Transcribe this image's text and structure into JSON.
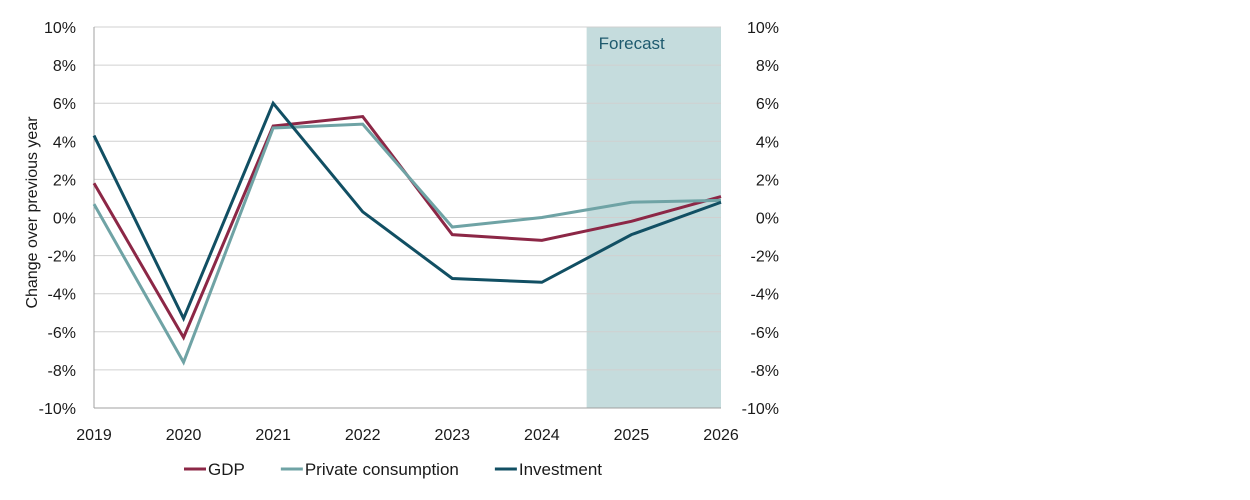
{
  "chart_data": {
    "type": "line",
    "title": "",
    "xlabel": "",
    "ylabel": "Change over previous year",
    "x": [
      "2019",
      "2020",
      "2021",
      "2022",
      "2023",
      "2024",
      "2025",
      "2026"
    ],
    "ylim": [
      -10,
      10
    ],
    "y_ticks": [
      "10%",
      "8%",
      "6%",
      "4%",
      "2%",
      "0%",
      "-2%",
      "-4%",
      "-6%",
      "-8%",
      "-10%"
    ],
    "y_tick_values": [
      10,
      8,
      6,
      4,
      2,
      0,
      -2,
      -4,
      -6,
      -8,
      -10
    ],
    "y_right_ticks": [
      "10%",
      "8%",
      "6%",
      "4%",
      "2%",
      "0%",
      "-2%",
      "-4%",
      "-6%",
      "-8%",
      "-10%"
    ],
    "grid": true,
    "legend_position": "bottom",
    "forecast": {
      "label": "Forecast",
      "from": 5.5,
      "to": 7,
      "color": "#c5dcdd",
      "label_color": "#1e5a6e"
    },
    "series": [
      {
        "name": "GDP",
        "color": "#8c2746",
        "values": [
          1.8,
          -6.3,
          4.8,
          5.3,
          -0.9,
          -1.2,
          -0.2,
          1.1
        ]
      },
      {
        "name": "Private consumption",
        "color": "#6fa3a5",
        "values": [
          0.7,
          -7.6,
          4.7,
          4.9,
          -0.5,
          0.0,
          0.8,
          0.9
        ]
      },
      {
        "name": "Investment",
        "color": "#114f63",
        "values": [
          4.3,
          -5.3,
          6.0,
          0.3,
          -3.2,
          -3.4,
          -0.9,
          0.8
        ]
      }
    ]
  }
}
